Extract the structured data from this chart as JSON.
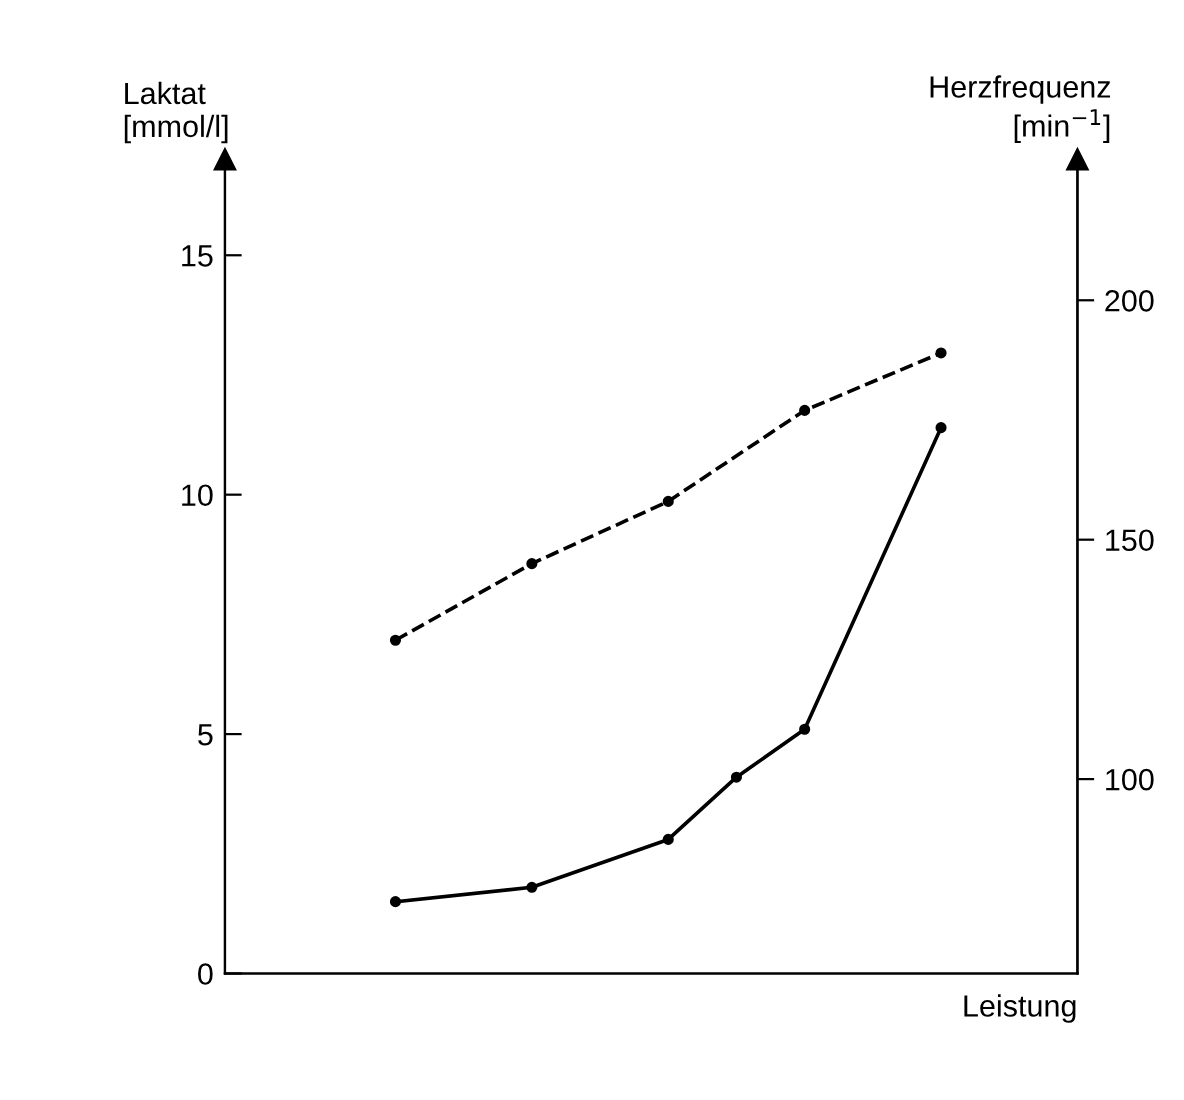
{
  "chart_data": {
    "type": "line",
    "xlabel": "Leistung",
    "ylabel": "Laktat\n[mmol/l]",
    "y2label": "Herzfrequenz\n[min$^{−1}$]",
    "categories": [
      null,
      null,
      null,
      null,
      null,
      null,
      null,
      null,
      null
    ],
    "series": [
      {
        "color": "#000000",
        "line_style": "solid",
        "values": [
          1.5,
          null,
          1.8,
          null,
          2.8,
          4.1,
          5.1,
          null,
          11.4
        ]
      },
      {
        "color": "#000000",
        "line_style": "dashed",
        "axis": "y2",
        "values": [
          129,
          null,
          145,
          null,
          158,
          null,
          177,
          null,
          189
        ]
      }
    ],
    "marker": "circle",
    "grid": false,
    "legend": false,
    "ylim": [
      0,
      17
    ],
    "yticks": [
      0,
      5,
      10,
      15
    ],
    "y2lim": [
      59.4,
      229.4
    ],
    "y2ticks": [
      100,
      150,
      200
    ]
  }
}
